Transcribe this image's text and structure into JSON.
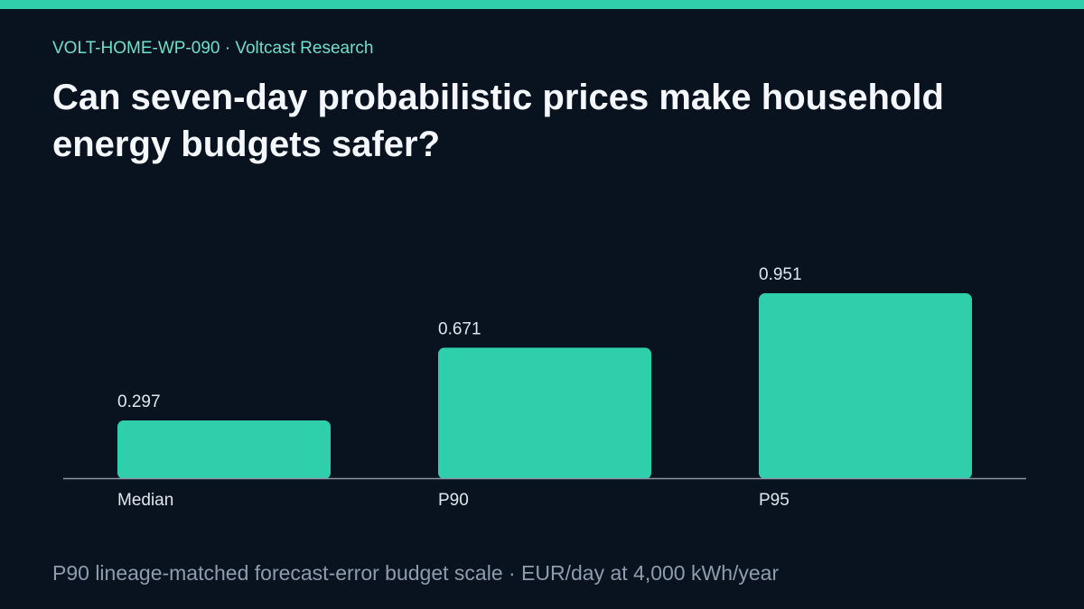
{
  "header": {
    "eyebrow": "VOLT-HOME-WP-090 · Voltcast Research",
    "title": "Can seven-day probabilistic prices make household energy budgets safer?"
  },
  "footnote": "P90 lineage-matched forecast-error budget scale · EUR/day at 4,000 kWh/year",
  "colors": {
    "background": "#09131f",
    "accent": "#2fcfab",
    "eyebrow_text": "#6fe0c6",
    "title_text": "#f4f7fb",
    "label_text": "#dfe6ee",
    "axis_line": "#8a96a6",
    "footnote_text": "#8f9cad"
  },
  "chart_data": {
    "type": "bar",
    "categories": [
      "Median",
      "P90",
      "P95"
    ],
    "values": [
      0.297,
      0.671,
      0.951
    ],
    "value_labels": [
      "0.297",
      "0.671",
      "0.951"
    ],
    "title": "",
    "xlabel": "",
    "ylabel": "",
    "ylim": [
      0,
      1.0
    ],
    "grid": false,
    "legend": "none"
  }
}
